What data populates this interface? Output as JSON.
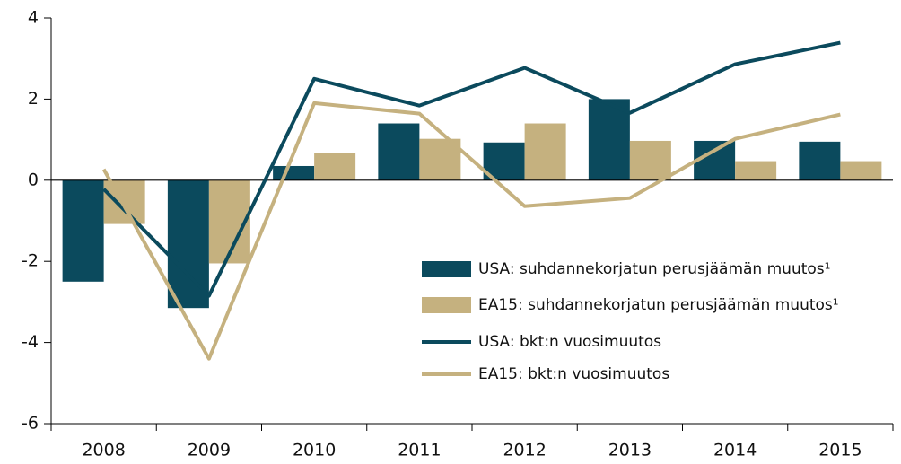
{
  "chart_data": {
    "type": "bar",
    "categories": [
      "2008",
      "2009",
      "2010",
      "2011",
      "2012",
      "2013",
      "2014",
      "2015"
    ],
    "series": [
      {
        "name": "USA: suhdannekorjatun perusjäämän muutos¹",
        "type": "bar",
        "color": "#0b4a5d",
        "values": [
          -2.5,
          -3.15,
          0.35,
          1.4,
          0.93,
          2.0,
          0.97,
          0.95
        ]
      },
      {
        "name": "EA15: suhdannekorjatun perusjäämän muutos¹",
        "type": "bar",
        "color": "#c5b17f",
        "values": [
          -1.08,
          -2.05,
          0.66,
          1.02,
          1.4,
          0.97,
          0.47,
          0.47
        ]
      },
      {
        "name": "USA: bkt:n vuosimuutos",
        "type": "line",
        "color": "#0b4a5d",
        "values": [
          -0.22,
          -2.85,
          2.5,
          1.84,
          2.77,
          1.66,
          2.86,
          3.39
        ]
      },
      {
        "name": "EA15: bkt:n vuosimuutos",
        "type": "line",
        "color": "#c5b17f",
        "values": [
          0.27,
          -4.4,
          1.9,
          1.64,
          -0.64,
          -0.44,
          1.02,
          1.62
        ]
      }
    ],
    "ylim": [
      -6,
      4
    ],
    "yticks": [
      -6,
      -4,
      -2,
      0,
      2,
      4
    ],
    "grid": false,
    "legend": "lower right"
  }
}
